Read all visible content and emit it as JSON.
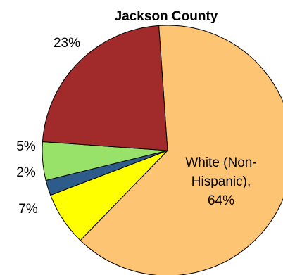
{
  "chart_data": {
    "type": "pie",
    "title": "Jackson County",
    "slices": [
      {
        "label_lines": [
          "White (Non-",
          "Hispanic),",
          "64%"
        ],
        "value": 64,
        "color": "#FDC473"
      },
      {
        "label_lines": [
          "7%"
        ],
        "value": 7,
        "color": "#FFFF00"
      },
      {
        "label_lines": [
          "2%"
        ],
        "value": 2,
        "color": "#2E5C8A"
      },
      {
        "label_lines": [
          "5%"
        ],
        "value": 5,
        "color": "#98E26A"
      },
      {
        "label_lines": [
          "23%"
        ],
        "value": 23,
        "color": "#A12A2A"
      }
    ]
  }
}
